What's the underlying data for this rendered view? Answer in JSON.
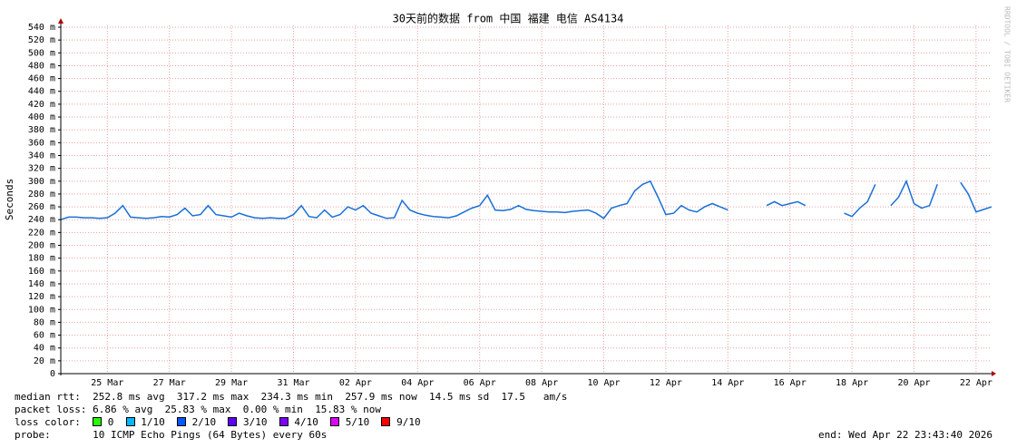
{
  "chart_data": {
    "type": "line",
    "title": "30天前的数据 from 中国 福建 电信 AS4134",
    "y_label": "Seconds",
    "watermark": "RRDTOOL / TOBI OETIKER",
    "categories": [
      null,
      null,
      null,
      null,
      null,
      null,
      "25 Mar",
      null,
      null,
      null,
      null,
      null,
      null,
      null,
      "27 Mar",
      null,
      null,
      null,
      null,
      null,
      null,
      null,
      "29 Mar",
      null,
      null,
      null,
      null,
      null,
      null,
      null,
      "31 Mar",
      null,
      null,
      null,
      null,
      null,
      null,
      null,
      "02 Apr",
      null,
      null,
      null,
      null,
      null,
      null,
      null,
      "04 Apr",
      null,
      null,
      null,
      null,
      null,
      null,
      null,
      "06 Apr",
      null,
      null,
      null,
      null,
      null,
      null,
      null,
      "08 Apr",
      null,
      null,
      null,
      null,
      null,
      null,
      null,
      "10 Apr",
      null,
      null,
      null,
      null,
      null,
      null,
      null,
      "12 Apr",
      null,
      null,
      null,
      null,
      null,
      null,
      null,
      "14 Apr",
      null,
      null,
      null,
      null,
      null,
      null,
      null,
      "16 Apr",
      null,
      null,
      null,
      null,
      null,
      null,
      null,
      "18 Apr",
      null,
      null,
      null,
      null,
      null,
      null,
      null,
      "20 Apr",
      null,
      null,
      null,
      null,
      null,
      null,
      null,
      "22 Apr",
      null,
      null
    ],
    "series": [
      {
        "color": "#1a6fd8",
        "values": [
          240,
          244,
          244,
          243,
          243,
          242,
          243,
          250,
          262,
          244,
          243,
          242,
          243,
          245,
          244,
          248,
          258,
          246,
          248,
          262,
          248,
          246,
          244,
          250,
          246,
          243,
          242,
          243,
          242,
          242,
          248,
          262,
          245,
          243,
          255,
          244,
          248,
          260,
          255,
          262,
          250,
          246,
          242,
          243,
          270,
          255,
          250,
          247,
          245,
          244,
          243,
          246,
          252,
          258,
          262,
          278,
          255,
          254,
          256,
          262,
          256,
          254,
          253,
          252,
          252,
          251,
          253,
          254,
          255,
          250,
          242,
          258,
          262,
          265,
          285,
          295,
          300,
          275,
          248,
          250,
          262,
          255,
          252,
          260,
          265,
          260,
          255,
          null,
          null,
          null,
          null,
          262,
          268,
          262,
          265,
          268,
          262,
          null,
          null,
          null,
          null,
          250,
          245,
          258,
          268,
          295,
          null,
          262,
          275,
          300,
          265,
          258,
          262,
          295,
          null,
          null,
          298,
          280,
          252,
          256,
          260
        ]
      }
    ],
    "ylim": [
      0,
      540
    ],
    "yticks": [
      {
        "value": 0,
        "label": "0"
      },
      {
        "value": 20,
        "label": "20 m"
      },
      {
        "value": 40,
        "label": "40 m"
      },
      {
        "value": 60,
        "label": "60 m"
      },
      {
        "value": 80,
        "label": "80 m"
      },
      {
        "value": 100,
        "label": "100 m"
      },
      {
        "value": 120,
        "label": "120 m"
      },
      {
        "value": 140,
        "label": "140 m"
      },
      {
        "value": 160,
        "label": "160 m"
      },
      {
        "value": 180,
        "label": "180 m"
      },
      {
        "value": 200,
        "label": "200 m"
      },
      {
        "value": 220,
        "label": "220 m"
      },
      {
        "value": 240,
        "label": "240 m"
      },
      {
        "value": 260,
        "label": "260 m"
      },
      {
        "value": 280,
        "label": "280 m"
      },
      {
        "value": 300,
        "label": "300 m"
      },
      {
        "value": 320,
        "label": "320 m"
      },
      {
        "value": 340,
        "label": "340 m"
      },
      {
        "value": 360,
        "label": "360 m"
      },
      {
        "value": 380,
        "label": "380 m"
      },
      {
        "value": 400,
        "label": "400 m"
      },
      {
        "value": 420,
        "label": "420 m"
      },
      {
        "value": 440,
        "label": "440 m"
      },
      {
        "value": 460,
        "label": "460 m"
      },
      {
        "value": 480,
        "label": "480 m"
      },
      {
        "value": 500,
        "label": "500 m"
      },
      {
        "value": 520,
        "label": "520 m"
      },
      {
        "value": 540,
        "label": "540 m"
      }
    ],
    "grid": true
  },
  "footer": {
    "rtt": [
      "median rtt:",
      "252.8 ms avg",
      "317.2 ms max",
      "234.3 ms min",
      "257.9 ms now",
      "14.5 ms sd",
      "17.5",
      "am/s"
    ],
    "loss": [
      "packet loss:",
      "6.86 % avg",
      "25.83 % max",
      "0.00 % min",
      "15.83 % now"
    ],
    "loss_color_label": "loss color:",
    "loss_colors": [
      {
        "color": "#26ff00",
        "label": "0"
      },
      {
        "color": "#00b8ff",
        "label": "1/10"
      },
      {
        "color": "#0059ff",
        "label": "2/10"
      },
      {
        "color": "#5e00ff",
        "label": "3/10"
      },
      {
        "color": "#7e00ff",
        "label": "4/10"
      },
      {
        "color": "#dd00ff",
        "label": "5/10"
      },
      {
        "color": "#ff0000",
        "label": "9/10"
      }
    ],
    "probe_label": "probe:",
    "probe": "10 ICMP Echo Pings (64 Bytes) every 60s",
    "end": "end: Wed Apr 22 23:43:40 2026"
  }
}
